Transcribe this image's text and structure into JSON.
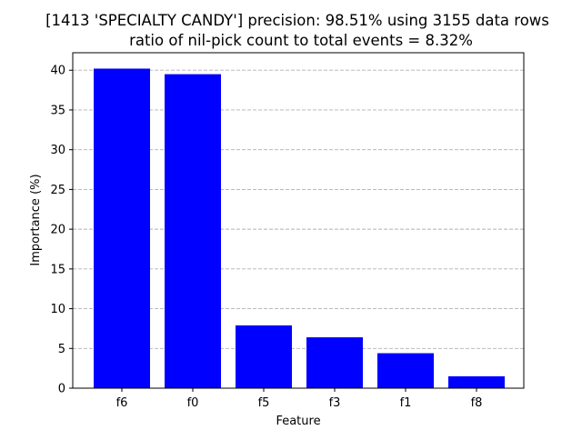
{
  "chart_data": {
    "type": "bar",
    "title": "[1413 'SPECIALTY CANDY'] precision: 98.51% using 3155 data rows",
    "subtitle": "ratio of nil-pick count to total events = 8.32%",
    "xlabel": "Feature",
    "ylabel": "Importance (%)",
    "categories": [
      "f6",
      "f0",
      "f5",
      "f3",
      "f1",
      "f8"
    ],
    "values": [
      40.2,
      39.5,
      7.9,
      6.4,
      4.4,
      1.5
    ],
    "ylim": [
      0,
      42.2
    ],
    "yticks": [
      0,
      5,
      10,
      15,
      20,
      25,
      30,
      35,
      40
    ],
    "grid": "horizontal dashed",
    "bar_color": "#0000ff",
    "grid_color": "#b0b0b0"
  }
}
